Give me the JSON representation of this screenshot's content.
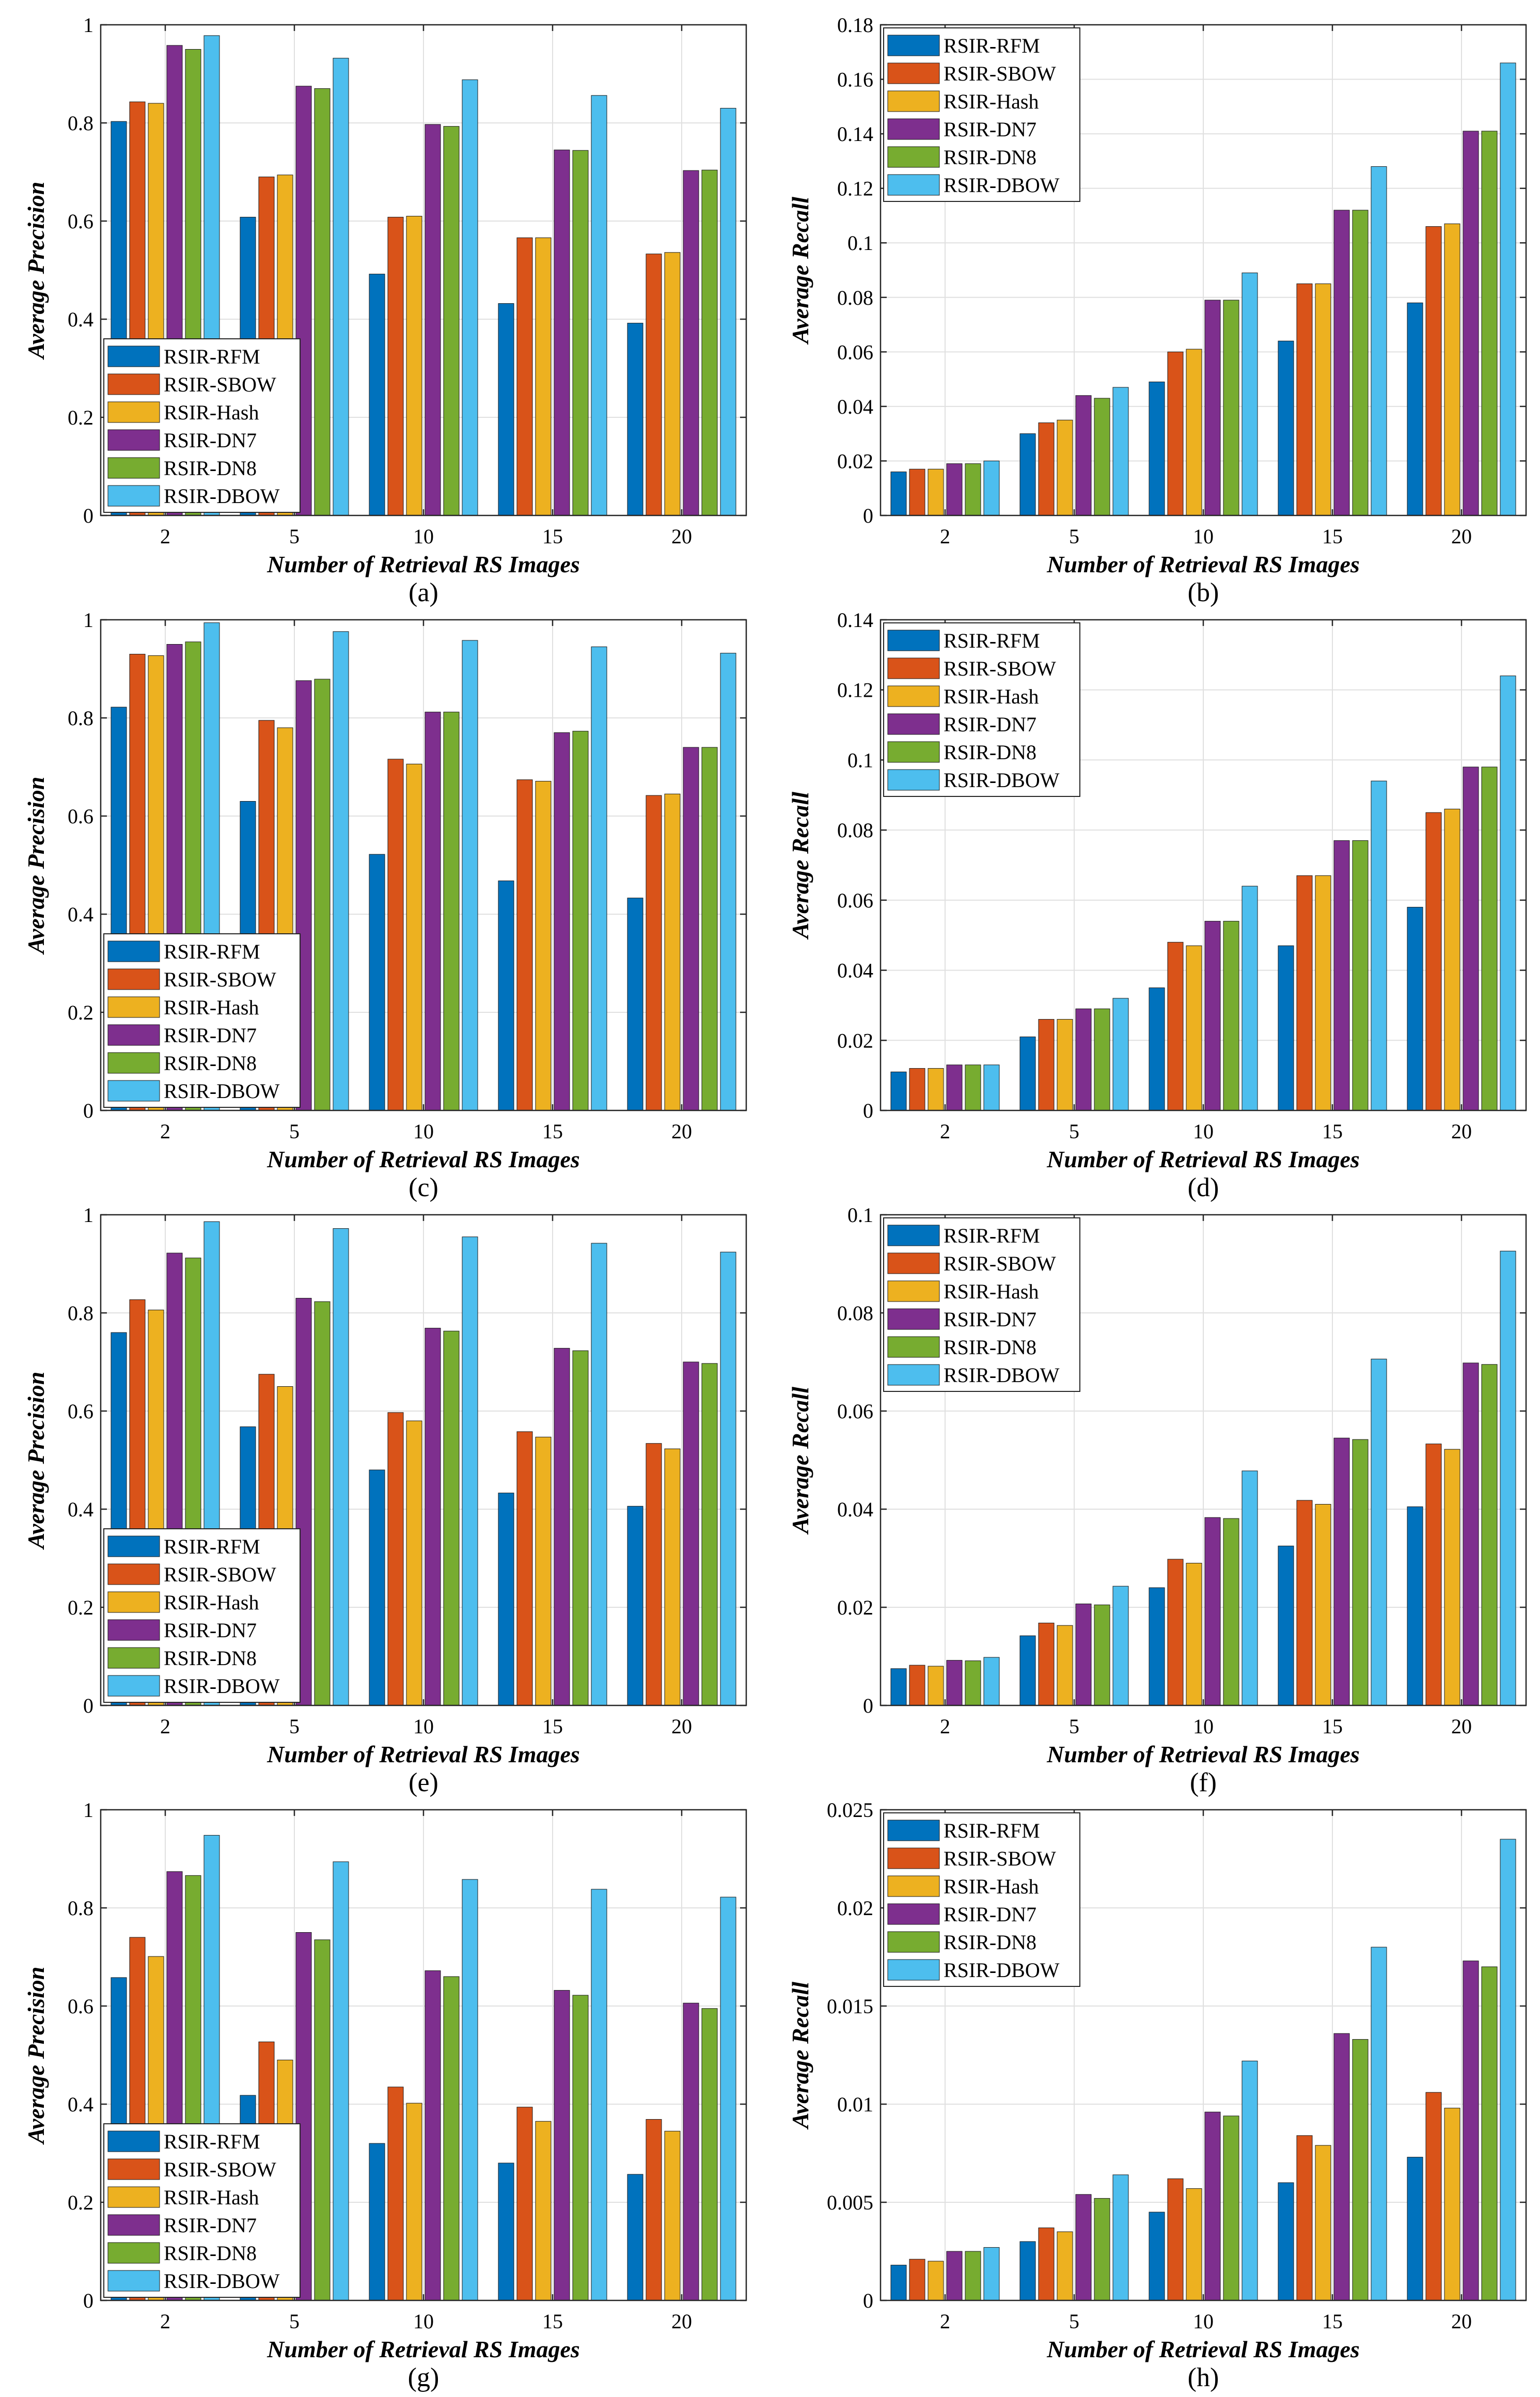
{
  "chart_data": [
    {
      "id": "a",
      "type": "bar",
      "caption": "(a)",
      "xlabel": "Number of Retrieval RS Images",
      "ylabel": "Average Precision",
      "categories": [
        "2",
        "5",
        "10",
        "15",
        "20"
      ],
      "ylim": [
        0,
        1
      ],
      "yticks": [
        0,
        0.2,
        0.4,
        0.6,
        0.8,
        1
      ],
      "ytick_labels": [
        "0",
        "0.2",
        "0.4",
        "0.6",
        "0.8",
        "1"
      ],
      "grid": true,
      "legend_position": "bottom-left",
      "series": [
        {
          "name": "RSIR-RFM",
          "color": "#0072BD",
          "values": [
            0.803,
            0.608,
            0.492,
            0.432,
            0.392
          ]
        },
        {
          "name": "RSIR-SBOW",
          "color": "#D95319",
          "values": [
            0.843,
            0.69,
            0.608,
            0.566,
            0.533
          ]
        },
        {
          "name": "RSIR-Hash",
          "color": "#EDB120",
          "values": [
            0.84,
            0.694,
            0.61,
            0.566,
            0.536
          ]
        },
        {
          "name": "RSIR-DN7",
          "color": "#7E2F8E",
          "values": [
            0.958,
            0.875,
            0.797,
            0.745,
            0.703
          ]
        },
        {
          "name": "RSIR-DN8",
          "color": "#77AC30",
          "values": [
            0.95,
            0.87,
            0.793,
            0.744,
            0.704
          ]
        },
        {
          "name": "RSIR-DBOW",
          "color": "#4DBEEE",
          "values": [
            0.978,
            0.932,
            0.888,
            0.856,
            0.83
          ]
        }
      ]
    },
    {
      "id": "b",
      "type": "bar",
      "caption": "(b)",
      "xlabel": "Number of Retrieval RS Images",
      "ylabel": "Average Recall",
      "categories": [
        "2",
        "5",
        "10",
        "15",
        "20"
      ],
      "ylim": [
        0,
        0.18
      ],
      "yticks": [
        0,
        0.02,
        0.04,
        0.06,
        0.08,
        0.1,
        0.12,
        0.14,
        0.16,
        0.18
      ],
      "ytick_labels": [
        "0",
        "0.02",
        "0.04",
        "0.06",
        "0.08",
        "0.1",
        "0.12",
        "0.14",
        "0.16",
        "0.18"
      ],
      "grid": true,
      "legend_position": "top-left",
      "series": [
        {
          "name": "RSIR-RFM",
          "color": "#0072BD",
          "values": [
            0.016,
            0.03,
            0.049,
            0.064,
            0.078
          ]
        },
        {
          "name": "RSIR-SBOW",
          "color": "#D95319",
          "values": [
            0.017,
            0.034,
            0.06,
            0.085,
            0.106
          ]
        },
        {
          "name": "RSIR-Hash",
          "color": "#EDB120",
          "values": [
            0.017,
            0.035,
            0.061,
            0.085,
            0.107
          ]
        },
        {
          "name": "RSIR-DN7",
          "color": "#7E2F8E",
          "values": [
            0.019,
            0.044,
            0.079,
            0.112,
            0.141
          ]
        },
        {
          "name": "RSIR-DN8",
          "color": "#77AC30",
          "values": [
            0.019,
            0.043,
            0.079,
            0.112,
            0.141
          ]
        },
        {
          "name": "RSIR-DBOW",
          "color": "#4DBEEE",
          "values": [
            0.02,
            0.047,
            0.089,
            0.128,
            0.166
          ]
        }
      ]
    },
    {
      "id": "c",
      "type": "bar",
      "caption": "(c)",
      "xlabel": "Number of Retrieval RS Images",
      "ylabel": "Average Precision",
      "categories": [
        "2",
        "5",
        "10",
        "15",
        "20"
      ],
      "ylim": [
        0,
        1
      ],
      "yticks": [
        0,
        0.2,
        0.4,
        0.6,
        0.8,
        1
      ],
      "ytick_labels": [
        "0",
        "0.2",
        "0.4",
        "0.6",
        "0.8",
        "1"
      ],
      "grid": true,
      "legend_position": "bottom-left",
      "series": [
        {
          "name": "RSIR-RFM",
          "color": "#0072BD",
          "values": [
            0.822,
            0.63,
            0.522,
            0.468,
            0.433
          ]
        },
        {
          "name": "RSIR-SBOW",
          "color": "#D95319",
          "values": [
            0.93,
            0.795,
            0.716,
            0.674,
            0.642
          ]
        },
        {
          "name": "RSIR-Hash",
          "color": "#EDB120",
          "values": [
            0.927,
            0.78,
            0.706,
            0.671,
            0.645
          ]
        },
        {
          "name": "RSIR-DN7",
          "color": "#7E2F8E",
          "values": [
            0.95,
            0.876,
            0.812,
            0.77,
            0.74
          ]
        },
        {
          "name": "RSIR-DN8",
          "color": "#77AC30",
          "values": [
            0.955,
            0.879,
            0.812,
            0.773,
            0.74
          ]
        },
        {
          "name": "RSIR-DBOW",
          "color": "#4DBEEE",
          "values": [
            0.994,
            0.976,
            0.958,
            0.945,
            0.932
          ]
        }
      ]
    },
    {
      "id": "d",
      "type": "bar",
      "caption": "(d)",
      "xlabel": "Number of Retrieval RS Images",
      "ylabel": "Average Recall",
      "categories": [
        "2",
        "5",
        "10",
        "15",
        "20"
      ],
      "ylim": [
        0,
        0.14
      ],
      "yticks": [
        0,
        0.02,
        0.04,
        0.06,
        0.08,
        0.1,
        0.12,
        0.14
      ],
      "ytick_labels": [
        "0",
        "0.02",
        "0.04",
        "0.06",
        "0.08",
        "0.1",
        "0.12",
        "0.14"
      ],
      "grid": true,
      "legend_position": "top-left",
      "series": [
        {
          "name": "RSIR-RFM",
          "color": "#0072BD",
          "values": [
            0.011,
            0.021,
            0.035,
            0.047,
            0.058
          ]
        },
        {
          "name": "RSIR-SBOW",
          "color": "#D95319",
          "values": [
            0.012,
            0.026,
            0.048,
            0.067,
            0.085
          ]
        },
        {
          "name": "RSIR-Hash",
          "color": "#EDB120",
          "values": [
            0.012,
            0.026,
            0.047,
            0.067,
            0.086
          ]
        },
        {
          "name": "RSIR-DN7",
          "color": "#7E2F8E",
          "values": [
            0.013,
            0.029,
            0.054,
            0.077,
            0.098
          ]
        },
        {
          "name": "RSIR-DN8",
          "color": "#77AC30",
          "values": [
            0.013,
            0.029,
            0.054,
            0.077,
            0.098
          ]
        },
        {
          "name": "RSIR-DBOW",
          "color": "#4DBEEE",
          "values": [
            0.013,
            0.032,
            0.064,
            0.094,
            0.124
          ]
        }
      ]
    },
    {
      "id": "e",
      "type": "bar",
      "caption": "(e)",
      "xlabel": "Number of Retrieval RS Images",
      "ylabel": "Average Precision",
      "categories": [
        "2",
        "5",
        "10",
        "15",
        "20"
      ],
      "ylim": [
        0,
        1
      ],
      "yticks": [
        0,
        0.2,
        0.4,
        0.6,
        0.8,
        1
      ],
      "ytick_labels": [
        "0",
        "0.2",
        "0.4",
        "0.6",
        "0.8",
        "1"
      ],
      "grid": true,
      "legend_position": "bottom-left",
      "series": [
        {
          "name": "RSIR-RFM",
          "color": "#0072BD",
          "values": [
            0.76,
            0.568,
            0.48,
            0.433,
            0.406
          ]
        },
        {
          "name": "RSIR-SBOW",
          "color": "#D95319",
          "values": [
            0.827,
            0.675,
            0.597,
            0.558,
            0.534
          ]
        },
        {
          "name": "RSIR-Hash",
          "color": "#EDB120",
          "values": [
            0.806,
            0.65,
            0.58,
            0.547,
            0.523
          ]
        },
        {
          "name": "RSIR-DN7",
          "color": "#7E2F8E",
          "values": [
            0.922,
            0.83,
            0.769,
            0.728,
            0.7
          ]
        },
        {
          "name": "RSIR-DN8",
          "color": "#77AC30",
          "values": [
            0.912,
            0.823,
            0.763,
            0.723,
            0.697
          ]
        },
        {
          "name": "RSIR-DBOW",
          "color": "#4DBEEE",
          "values": [
            0.986,
            0.972,
            0.955,
            0.942,
            0.924
          ]
        }
      ]
    },
    {
      "id": "f",
      "type": "bar",
      "caption": "(f)",
      "xlabel": "Number of Retrieval RS Images",
      "ylabel": "Average Recall",
      "categories": [
        "2",
        "5",
        "10",
        "15",
        "20"
      ],
      "ylim": [
        0,
        0.1
      ],
      "yticks": [
        0,
        0.02,
        0.04,
        0.06,
        0.08,
        0.1
      ],
      "ytick_labels": [
        "0",
        "0.02",
        "0.04",
        "0.06",
        "0.08",
        "0.1"
      ],
      "grid": true,
      "legend_position": "top-left",
      "series": [
        {
          "name": "RSIR-RFM",
          "color": "#0072BD",
          "values": [
            0.0075,
            0.0142,
            0.024,
            0.0325,
            0.0405
          ]
        },
        {
          "name": "RSIR-SBOW",
          "color": "#D95319",
          "values": [
            0.0082,
            0.0168,
            0.0298,
            0.0418,
            0.0533
          ]
        },
        {
          "name": "RSIR-Hash",
          "color": "#EDB120",
          "values": [
            0.008,
            0.0163,
            0.029,
            0.041,
            0.0522
          ]
        },
        {
          "name": "RSIR-DN7",
          "color": "#7E2F8E",
          "values": [
            0.0092,
            0.0207,
            0.0383,
            0.0545,
            0.0698
          ]
        },
        {
          "name": "RSIR-DN8",
          "color": "#77AC30",
          "values": [
            0.0091,
            0.0205,
            0.0381,
            0.0542,
            0.0695
          ]
        },
        {
          "name": "RSIR-DBOW",
          "color": "#4DBEEE",
          "values": [
            0.0098,
            0.0243,
            0.0478,
            0.0706,
            0.0926
          ]
        }
      ]
    },
    {
      "id": "g",
      "type": "bar",
      "caption": "(g)",
      "xlabel": "Number of Retrieval RS Images",
      "ylabel": "Average Precision",
      "categories": [
        "2",
        "5",
        "10",
        "15",
        "20"
      ],
      "ylim": [
        0,
        1
      ],
      "yticks": [
        0,
        0.2,
        0.4,
        0.6,
        0.8,
        1
      ],
      "ytick_labels": [
        "0",
        "0.2",
        "0.4",
        "0.6",
        "0.8",
        "1"
      ],
      "grid": true,
      "legend_position": "bottom-left",
      "series": [
        {
          "name": "RSIR-RFM",
          "color": "#0072BD",
          "values": [
            0.658,
            0.418,
            0.32,
            0.28,
            0.257
          ]
        },
        {
          "name": "RSIR-SBOW",
          "color": "#D95319",
          "values": [
            0.74,
            0.527,
            0.435,
            0.394,
            0.369
          ]
        },
        {
          "name": "RSIR-Hash",
          "color": "#EDB120",
          "values": [
            0.701,
            0.49,
            0.402,
            0.365,
            0.345
          ]
        },
        {
          "name": "RSIR-DN7",
          "color": "#7E2F8E",
          "values": [
            0.874,
            0.75,
            0.672,
            0.632,
            0.606
          ]
        },
        {
          "name": "RSIR-DN8",
          "color": "#77AC30",
          "values": [
            0.866,
            0.735,
            0.66,
            0.622,
            0.595
          ]
        },
        {
          "name": "RSIR-DBOW",
          "color": "#4DBEEE",
          "values": [
            0.948,
            0.894,
            0.858,
            0.838,
            0.822
          ]
        }
      ]
    },
    {
      "id": "h",
      "type": "bar",
      "caption": "(h)",
      "xlabel": "Number of Retrieval RS Images",
      "ylabel": "Average Recall",
      "categories": [
        "2",
        "5",
        "10",
        "15",
        "20"
      ],
      "ylim": [
        0,
        0.025
      ],
      "yticks": [
        0,
        0.005,
        0.01,
        0.015,
        0.02,
        0.025
      ],
      "ytick_labels": [
        "0",
        "0.005",
        "0.01",
        "0.015",
        "0.02",
        "0.025"
      ],
      "grid": true,
      "legend_position": "top-left",
      "series": [
        {
          "name": "RSIR-RFM",
          "color": "#0072BD",
          "values": [
            0.0018,
            0.003,
            0.0045,
            0.006,
            0.0073
          ]
        },
        {
          "name": "RSIR-SBOW",
          "color": "#D95319",
          "values": [
            0.0021,
            0.0037,
            0.0062,
            0.0084,
            0.0106
          ]
        },
        {
          "name": "RSIR-Hash",
          "color": "#EDB120",
          "values": [
            0.002,
            0.0035,
            0.0057,
            0.0079,
            0.0098
          ]
        },
        {
          "name": "RSIR-DN7",
          "color": "#7E2F8E",
          "values": [
            0.0025,
            0.0054,
            0.0096,
            0.0136,
            0.0173
          ]
        },
        {
          "name": "RSIR-DN8",
          "color": "#77AC30",
          "values": [
            0.0025,
            0.0052,
            0.0094,
            0.0133,
            0.017
          ]
        },
        {
          "name": "RSIR-DBOW",
          "color": "#4DBEEE",
          "values": [
            0.0027,
            0.0064,
            0.0122,
            0.018,
            0.0235
          ]
        }
      ]
    }
  ]
}
